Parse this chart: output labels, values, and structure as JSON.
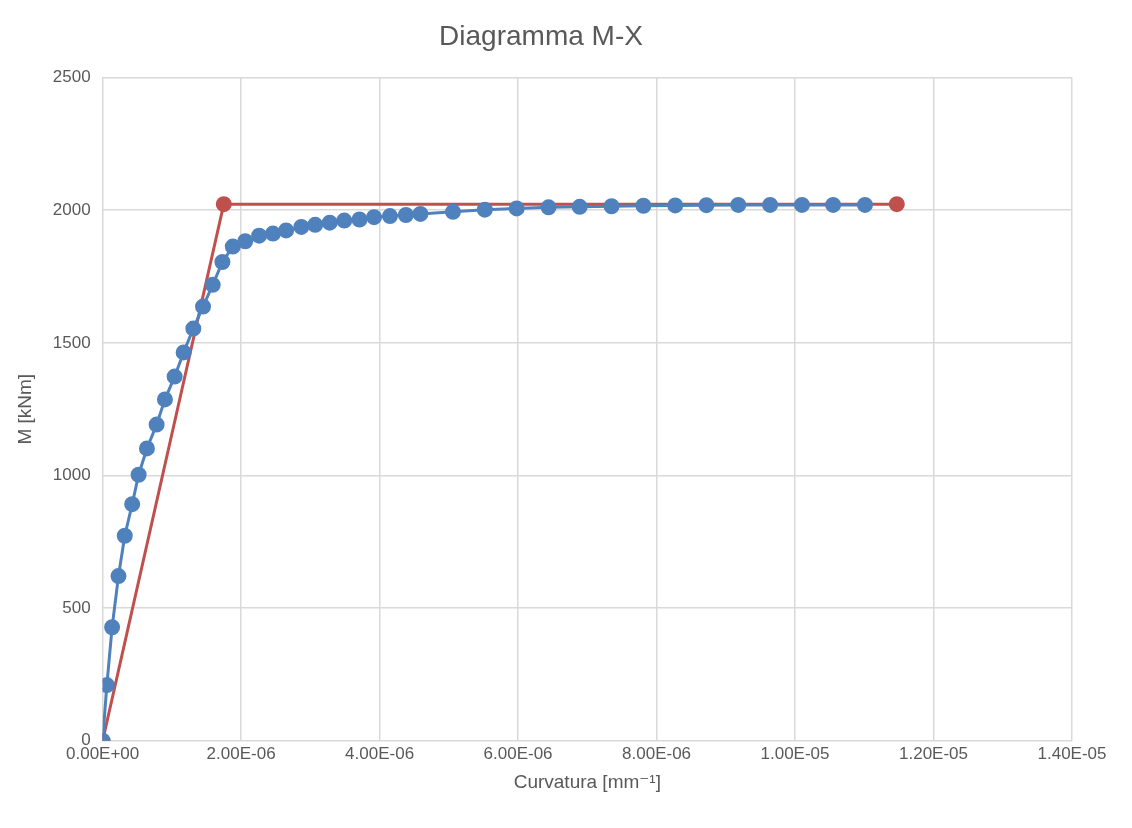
{
  "chart_data": {
    "type": "line",
    "title": "Diagramma M-X",
    "xlabel": "Curvatura [mm⁻¹]",
    "ylabel": "M [kNm]",
    "grid": true,
    "legend": false,
    "marker": "circle",
    "line_style": "solid",
    "xlim": [
      0,
      1.4e-05
    ],
    "xticks": [
      {
        "value": 0,
        "label": "0.00E+00"
      },
      {
        "value": 2e-06,
        "label": "2.00E-06"
      },
      {
        "value": 4e-06,
        "label": "4.00E-06"
      },
      {
        "value": 6e-06,
        "label": "6.00E-06"
      },
      {
        "value": 8e-06,
        "label": "8.00E-06"
      },
      {
        "value": 1e-05,
        "label": "1.00E-05"
      },
      {
        "value": 1.2e-05,
        "label": "1.20E-05"
      },
      {
        "value": 1.4e-05,
        "label": "1.40E-05"
      }
    ],
    "ylim": [
      0,
      2500
    ],
    "yticks": [
      0,
      500,
      1000,
      1500,
      2000,
      2500
    ],
    "series": [
      {
        "color": "#4f81bd",
        "x": [
          0,
          6.1e-08,
          1.37e-07,
          2.29e-07,
          3.2e-07,
          4.27e-07,
          5.2e-07,
          6.4e-07,
          7.8e-07,
          9e-07,
          1.04e-06,
          1.17e-06,
          1.31e-06,
          1.45e-06,
          1.59e-06,
          1.73e-06,
          1.88e-06,
          2.06e-06,
          2.26e-06,
          2.46e-06,
          2.65e-06,
          2.87e-06,
          3.07e-06,
          3.28e-06,
          3.49e-06,
          3.71e-06,
          3.92e-06,
          4.15e-06,
          4.38e-06,
          4.59e-06,
          5.06e-06,
          5.52e-06,
          5.98e-06,
          6.44e-06,
          6.89e-06,
          7.35e-06,
          7.81e-06,
          8.27e-06,
          8.72e-06,
          9.18e-06,
          9.64e-06,
          1.01e-05,
          1.055e-05,
          1.101e-05
        ],
        "values": [
          0,
          210,
          428,
          621,
          773,
          892,
          1003,
          1102,
          1192,
          1287,
          1373,
          1464,
          1554,
          1637,
          1719,
          1805,
          1863,
          1883,
          1904,
          1912,
          1924,
          1937,
          1945,
          1953,
          1961,
          1965,
          1974,
          1978,
          1982,
          1986,
          1994,
          2002,
          2007,
          2011,
          2013,
          2015,
          2017,
          2018,
          2019,
          2020,
          2020,
          2020,
          2020,
          2020
        ]
      },
      {
        "color": "#c0504d",
        "x": [
          0,
          1.75e-06,
          1.147e-05
        ],
        "values": [
          0,
          2023,
          2023
        ]
      }
    ]
  }
}
